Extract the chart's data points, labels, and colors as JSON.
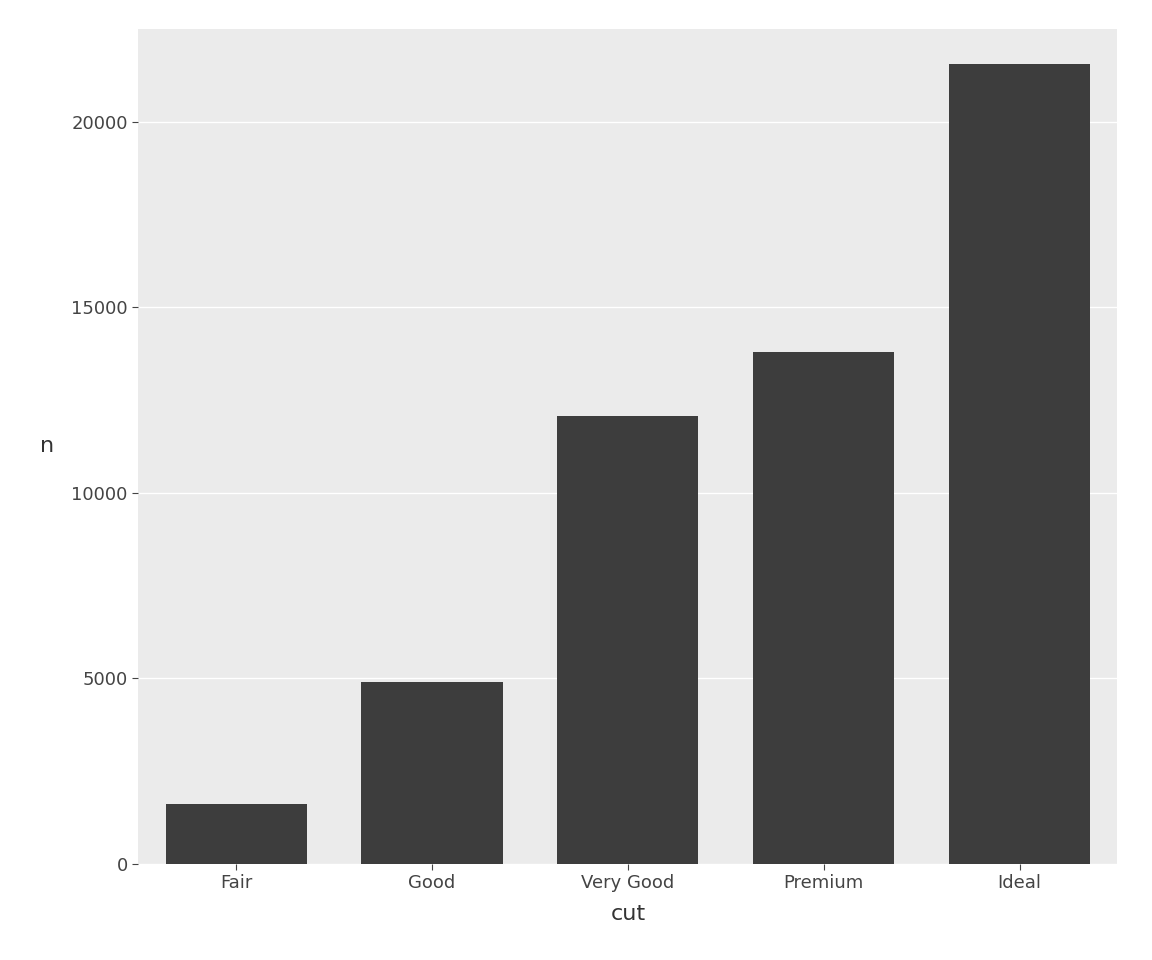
{
  "categories": [
    "Fair",
    "Good",
    "Very Good",
    "Premium",
    "Ideal"
  ],
  "values": [
    1610,
    4906,
    12082,
    13791,
    21551
  ],
  "bar_color": "#3d3d3d",
  "figure_background": "#ffffff",
  "panel_background": "#ebebeb",
  "grid_color": "#ffffff",
  "xlabel": "cut",
  "ylabel": "n",
  "ylim": [
    0,
    22500
  ],
  "yticks": [
    0,
    5000,
    10000,
    15000,
    20000
  ],
  "axis_label_fontsize": 16,
  "tick_fontsize": 13,
  "bar_width": 0.72
}
